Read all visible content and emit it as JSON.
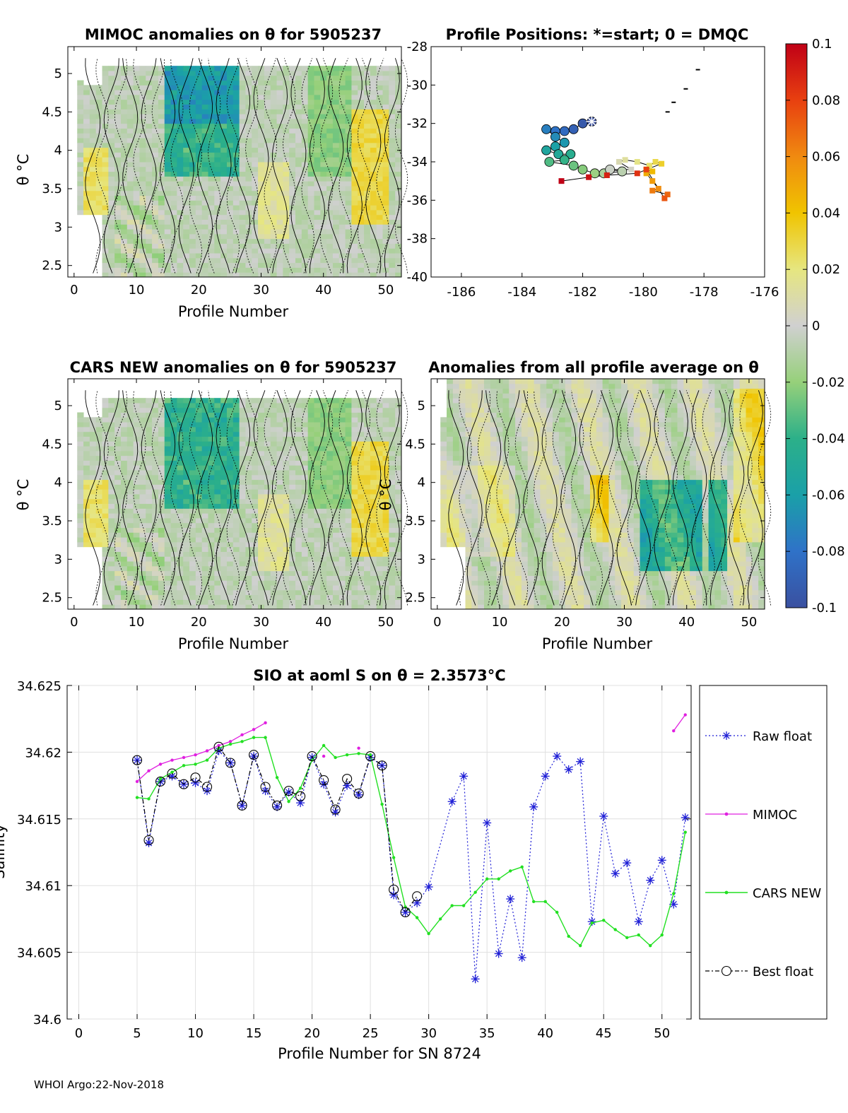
{
  "panels": {
    "mimoc": {
      "title": "MIMOC anomalies on θ  for 5905237",
      "xlabel": "Profile Number",
      "ylabel": "θ °C",
      "xticks": [
        "0",
        "10",
        "20",
        "30",
        "40",
        "50"
      ],
      "yticks": [
        "2.5",
        "3",
        "3.5",
        "4",
        "4.5",
        "5"
      ]
    },
    "positions": {
      "title": "Profile Positions: *=start; 0 = DMQC",
      "xticks": [
        "-186",
        "-184",
        "-182",
        "-180",
        "-178",
        "-176"
      ],
      "yticks": [
        "-28",
        "-30",
        "-32",
        "-34",
        "-36",
        "-38",
        "-40"
      ]
    },
    "cars": {
      "title": "CARS NEW anomalies on θ for 5905237",
      "xlabel": "Profile Number",
      "ylabel": "θ °C",
      "xticks": [
        "0",
        "10",
        "20",
        "30",
        "40",
        "50"
      ],
      "yticks": [
        "2.5",
        "3",
        "3.5",
        "4",
        "4.5",
        "5"
      ]
    },
    "allavg": {
      "title": "Anomalies from all profile average on θ",
      "xlabel": "Profile Number",
      "ylabel": "θ °C",
      "xticks": [
        "0",
        "10",
        "20",
        "30",
        "40",
        "50"
      ],
      "yticks": [
        "2.5",
        "3",
        "3.5",
        "4",
        "4.5",
        "5"
      ]
    }
  },
  "colorbar": {
    "ticks": [
      "0.1",
      "0.08",
      "0.06",
      "0.04",
      "0.02",
      "0",
      "-0.02",
      "-0.04",
      "-0.06",
      "-0.08",
      "-0.1"
    ],
    "range": [
      -0.1,
      0.1
    ]
  },
  "chart_data": [
    {
      "type": "heatmap",
      "title": "MIMOC anomalies on θ  for 5905237",
      "xlabel": "Profile Number",
      "ylabel": "θ °C",
      "xlim": [
        -1,
        52.5
      ],
      "ylim": [
        2.35,
        5.35
      ]
    },
    {
      "type": "scatter",
      "title": "Profile Positions: *=start; 0 = DMQC",
      "xlim": [
        -187,
        -176
      ],
      "ylim": [
        -40,
        -28
      ],
      "track": [
        [
          -181.7,
          -31.9
        ],
        [
          -182.0,
          -32.0
        ],
        [
          -182.3,
          -32.3
        ],
        [
          -182.6,
          -32.4
        ],
        [
          -182.9,
          -32.4
        ],
        [
          -183.2,
          -32.3
        ],
        [
          -182.9,
          -32.7
        ],
        [
          -182.6,
          -33.0
        ],
        [
          -182.9,
          -33.2
        ],
        [
          -183.2,
          -33.4
        ],
        [
          -182.8,
          -33.6
        ],
        [
          -182.4,
          -33.6
        ],
        [
          -182.6,
          -33.9
        ],
        [
          -183.1,
          -34.0
        ],
        [
          -182.3,
          -34.2
        ],
        [
          -182.0,
          -34.4
        ],
        [
          -181.6,
          -34.6
        ],
        [
          -181.3,
          -34.6
        ],
        [
          -180.7,
          -34.5
        ],
        [
          -181.1,
          -34.4
        ],
        [
          -180.4,
          -34.4
        ],
        [
          -180.8,
          -34.0
        ],
        [
          -180.6,
          -33.9
        ],
        [
          -180.2,
          -34.0
        ],
        [
          -179.8,
          -34.2
        ],
        [
          -179.6,
          -34.0
        ],
        [
          -179.4,
          -34.1
        ],
        [
          -179.9,
          -34.4
        ],
        [
          -179.7,
          -34.5
        ],
        [
          -179.9,
          -34.6
        ],
        [
          -179.7,
          -35.0
        ],
        [
          -179.5,
          -35.4
        ],
        [
          -179.7,
          -35.5
        ],
        [
          -179.2,
          -35.7
        ],
        [
          -179.3,
          -35.9
        ],
        [
          -179.9,
          -34.4
        ],
        [
          -180.2,
          -34.6
        ],
        [
          -181.2,
          -34.7
        ],
        [
          -181.8,
          -34.8
        ],
        [
          -182.7,
          -35.0
        ]
      ]
    },
    {
      "type": "heatmap",
      "title": "CARS NEW anomalies on θ for 5905237",
      "xlabel": "Profile Number",
      "ylabel": "θ °C",
      "xlim": [
        -1,
        52.5
      ],
      "ylim": [
        2.35,
        5.35
      ]
    },
    {
      "type": "heatmap",
      "title": "Anomalies from all profile average on θ",
      "xlabel": "Profile Number",
      "ylabel": "θ °C",
      "xlim": [
        -1,
        52.5
      ],
      "ylim": [
        2.35,
        5.35
      ]
    },
    {
      "type": "line",
      "title": "SIO at aoml S on θ = 2.3573°C",
      "xlabel": "Profile Number for SN 8724",
      "ylabel": "Salinity",
      "xlim": [
        -1,
        52.5
      ],
      "ylim": [
        34.6,
        34.625
      ],
      "xticks": [
        "0",
        "5",
        "10",
        "15",
        "20",
        "25",
        "30",
        "35",
        "40",
        "45",
        "50"
      ],
      "yticks": [
        "34.625",
        "34.62",
        "34.615",
        "34.61",
        "34.605",
        "34.6"
      ],
      "series": [
        {
          "name": "Raw float",
          "color": "#1f1fd6",
          "x": [
            5,
            6,
            7,
            8,
            9,
            10,
            11,
            12,
            13,
            14,
            15,
            16,
            17,
            18,
            19,
            20,
            21,
            22,
            23,
            24,
            25,
            26,
            27,
            28,
            29,
            30,
            32,
            33,
            34,
            35,
            36,
            37,
            38,
            39,
            40,
            41,
            42,
            43,
            44,
            45,
            46,
            47,
            48,
            49,
            50,
            51,
            52
          ],
          "values": [
            34.6194,
            34.6132,
            34.6178,
            34.6182,
            34.6176,
            34.6177,
            34.6171,
            34.6201,
            34.6192,
            34.616,
            34.6197,
            34.6171,
            34.6159,
            34.617,
            34.6162,
            34.6196,
            34.6176,
            34.6155,
            34.6175,
            34.6168,
            34.6196,
            34.619,
            34.6093,
            34.608,
            34.6087,
            34.6099,
            34.6163,
            34.6182,
            34.603,
            34.6147,
            34.6049,
            34.609,
            34.6046,
            34.6159,
            34.6182,
            34.6197,
            34.6187,
            34.6193,
            34.6073,
            34.6152,
            34.6109,
            34.6117,
            34.6073,
            34.6104,
            34.6119,
            34.6086,
            34.6151
          ]
        },
        {
          "name": "MIMOC",
          "color": "#e020e0",
          "x": [
            5,
            6,
            7,
            8,
            9,
            10,
            11,
            12,
            13,
            14,
            15,
            16,
            null,
            21,
            null,
            24,
            null,
            51,
            52
          ],
          "values": [
            34.6178,
            34.6186,
            34.6191,
            34.6194,
            34.6196,
            34.6198,
            34.6201,
            34.6205,
            34.6208,
            34.6213,
            34.6217,
            34.6222,
            null,
            34.6197,
            null,
            34.6203,
            null,
            34.6216,
            34.6228
          ]
        },
        {
          "name": "CARS NEW",
          "color": "#22e022",
          "x": [
            5,
            6,
            7,
            8,
            9,
            10,
            11,
            12,
            13,
            14,
            15,
            16,
            17,
            18,
            19,
            20,
            21,
            22,
            23,
            24,
            25,
            26,
            27,
            28,
            29,
            30,
            31,
            32,
            33,
            34,
            35,
            36,
            37,
            38,
            39,
            40,
            41,
            42,
            43,
            44,
            45,
            46,
            47,
            48,
            49,
            50,
            51,
            52
          ],
          "values": [
            34.6166,
            34.6165,
            34.618,
            34.6185,
            34.619,
            34.6191,
            34.6194,
            34.6203,
            34.6206,
            34.6208,
            34.6211,
            34.6211,
            34.6181,
            34.6163,
            34.6173,
            34.6194,
            34.6205,
            34.6196,
            34.6198,
            34.6199,
            34.6198,
            34.6161,
            34.6121,
            34.6084,
            34.6076,
            34.6064,
            34.6075,
            34.6085,
            34.6085,
            34.6095,
            34.6105,
            34.6105,
            34.6111,
            34.6114,
            34.6088,
            34.6088,
            34.608,
            34.6062,
            34.6055,
            34.6072,
            34.6074,
            34.6067,
            34.6061,
            34.6063,
            34.6055,
            34.6063,
            34.6094,
            34.614
          ]
        },
        {
          "name": "Best float",
          "color": "#000000",
          "x": [
            5,
            6,
            7,
            8,
            9,
            10,
            11,
            12,
            13,
            14,
            15,
            16,
            17,
            18,
            19,
            20,
            21,
            22,
            23,
            24,
            25,
            26,
            27,
            28,
            29
          ],
          "values": [
            34.6194,
            34.6134,
            34.6178,
            34.6184,
            34.6176,
            34.6181,
            34.6174,
            34.6204,
            34.6192,
            34.616,
            34.6198,
            34.6174,
            34.616,
            34.6171,
            34.6167,
            34.6197,
            34.6179,
            34.6157,
            34.618,
            34.6169,
            34.6197,
            34.619,
            34.6097,
            34.608,
            34.6092
          ]
        }
      ]
    }
  ],
  "footer": "WHOI Argo:22-Nov-2018"
}
